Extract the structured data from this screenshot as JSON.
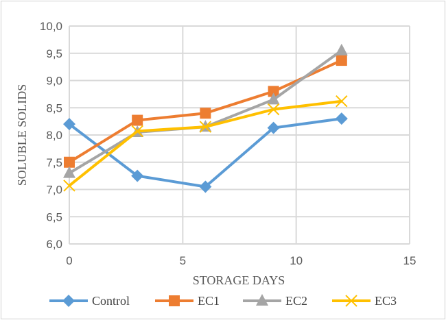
{
  "chart_data": {
    "type": "line",
    "xlabel": "STORAGE DAYS",
    "ylabel": "SOLUBLE SOLIDS",
    "xlim": [
      0,
      15
    ],
    "ylim": [
      6.0,
      10.0
    ],
    "xticks": [
      "0",
      "5",
      "10",
      "15"
    ],
    "yticks": [
      "6,0",
      "6,5",
      "7,0",
      "7,5",
      "8,0",
      "8,5",
      "9,0",
      "9,5",
      "10,0"
    ],
    "grid": true,
    "legend_position": "bottom",
    "x": [
      0,
      3,
      6,
      9,
      12
    ],
    "series": [
      {
        "name": "Control",
        "color": "#5b9bd5",
        "marker": "diamond",
        "values": [
          8.2,
          7.25,
          7.05,
          8.13,
          8.3
        ]
      },
      {
        "name": "EC1",
        "color": "#ed7d31",
        "marker": "square",
        "values": [
          7.5,
          8.27,
          8.4,
          8.8,
          9.37
        ]
      },
      {
        "name": "EC2",
        "color": "#a5a5a5",
        "marker": "triangle",
        "values": [
          7.3,
          8.05,
          8.15,
          8.65,
          9.55
        ]
      },
      {
        "name": "EC3",
        "color": "#ffc000",
        "marker": "x",
        "values": [
          7.07,
          8.07,
          8.15,
          8.47,
          8.62
        ]
      }
    ]
  }
}
